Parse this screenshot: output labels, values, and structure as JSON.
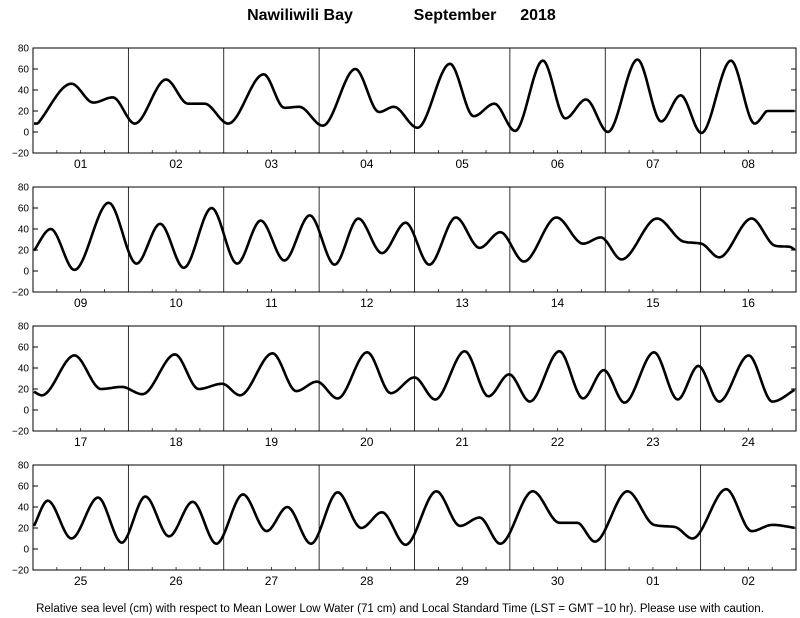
{
  "chart_data": {
    "type": "line",
    "title_location": "Nawiliwili Bay",
    "title_month": "September",
    "title_year": "2018",
    "footnote": "Relative sea level (cm) with respect to Mean Lower Low Water (71 cm) and Local Standard Time (LST = GMT −10 hr). Please use with caution.",
    "ylim": [
      -20,
      80
    ],
    "yticks": [
      -20,
      0,
      20,
      40,
      60,
      80
    ],
    "grid": false,
    "panels": [
      {
        "days": [
          "01",
          "02",
          "03",
          "04",
          "05",
          "06",
          "07",
          "08"
        ],
        "extrema": [
          [
            0.08,
            8
          ],
          [
            0.65,
            46
          ],
          [
            1.02,
            28
          ],
          [
            1.35,
            33
          ],
          [
            1.72,
            8
          ],
          [
            2.25,
            50
          ],
          [
            2.62,
            27
          ],
          [
            2.9,
            27
          ],
          [
            3.3,
            8
          ],
          [
            3.9,
            55
          ],
          [
            4.25,
            23
          ],
          [
            4.5,
            24
          ],
          [
            4.9,
            6
          ],
          [
            5.45,
            60
          ],
          [
            5.85,
            19
          ],
          [
            6.1,
            24
          ],
          [
            6.5,
            4
          ],
          [
            7.05,
            65
          ],
          [
            7.45,
            15
          ],
          [
            7.8,
            27
          ],
          [
            8.15,
            1
          ],
          [
            8.62,
            68
          ],
          [
            9.0,
            13
          ],
          [
            9.35,
            31
          ],
          [
            9.72,
            0
          ],
          [
            10.22,
            69
          ],
          [
            10.62,
            10
          ],
          [
            10.95,
            35
          ],
          [
            11.3,
            -1
          ],
          [
            11.8,
            68
          ],
          [
            12.2,
            8
          ],
          [
            12.4,
            20
          ]
        ]
      },
      {
        "days": [
          "09",
          "10",
          "11",
          "12",
          "13",
          "14",
          "15",
          "16"
        ],
        "extrema": [
          [
            0.0,
            18
          ],
          [
            0.3,
            40
          ],
          [
            0.7,
            1
          ],
          [
            1.28,
            65
          ],
          [
            1.75,
            7
          ],
          [
            2.15,
            45
          ],
          [
            2.55,
            3
          ],
          [
            3.02,
            60
          ],
          [
            3.45,
            7
          ],
          [
            3.85,
            48
          ],
          [
            4.25,
            10
          ],
          [
            4.68,
            53
          ],
          [
            5.1,
            6
          ],
          [
            5.5,
            50
          ],
          [
            5.9,
            17
          ],
          [
            6.3,
            46
          ],
          [
            6.7,
            6
          ],
          [
            7.15,
            51
          ],
          [
            7.55,
            22
          ],
          [
            7.9,
            37
          ],
          [
            8.3,
            9
          ],
          [
            8.85,
            51
          ],
          [
            9.3,
            26
          ],
          [
            9.6,
            32
          ],
          [
            9.95,
            11
          ],
          [
            10.55,
            50
          ],
          [
            11.0,
            28
          ],
          [
            11.3,
            26
          ],
          [
            11.6,
            13
          ],
          [
            12.15,
            50
          ],
          [
            12.55,
            24
          ],
          [
            12.8,
            23
          ],
          [
            12.9,
            19
          ]
        ]
      },
      {
        "days": [
          "17",
          "18",
          "19",
          "20",
          "21",
          "22",
          "23",
          "24"
        ],
        "extrema": [
          [
            0.0,
            18
          ],
          [
            0.15,
            14
          ],
          [
            0.7,
            52
          ],
          [
            1.15,
            20
          ],
          [
            1.5,
            22
          ],
          [
            1.85,
            15
          ],
          [
            2.4,
            53
          ],
          [
            2.8,
            20
          ],
          [
            3.2,
            25
          ],
          [
            3.5,
            14
          ],
          [
            4.05,
            54
          ],
          [
            4.45,
            18
          ],
          [
            4.8,
            27
          ],
          [
            5.15,
            11
          ],
          [
            5.65,
            55
          ],
          [
            6.05,
            16
          ],
          [
            6.45,
            31
          ],
          [
            6.8,
            10
          ],
          [
            7.3,
            56
          ],
          [
            7.7,
            13
          ],
          [
            8.05,
            34
          ],
          [
            8.4,
            8
          ],
          [
            8.9,
            56
          ],
          [
            9.3,
            11
          ],
          [
            9.65,
            38
          ],
          [
            10.0,
            7
          ],
          [
            10.5,
            55
          ],
          [
            10.9,
            10
          ],
          [
            11.25,
            42
          ],
          [
            11.6,
            8
          ],
          [
            12.1,
            52
          ],
          [
            12.5,
            8
          ],
          [
            12.9,
            20
          ]
        ]
      },
      {
        "days": [
          "25",
          "26",
          "27",
          "28",
          "29",
          "30",
          "01",
          "02"
        ],
        "extrema": [
          [
            0.0,
            20
          ],
          [
            0.25,
            46
          ],
          [
            0.65,
            10
          ],
          [
            1.1,
            49
          ],
          [
            1.5,
            6
          ],
          [
            1.9,
            50
          ],
          [
            2.3,
            12
          ],
          [
            2.7,
            45
          ],
          [
            3.1,
            5
          ],
          [
            3.55,
            52
          ],
          [
            3.95,
            17
          ],
          [
            4.3,
            40
          ],
          [
            4.7,
            5
          ],
          [
            5.15,
            54
          ],
          [
            5.55,
            20
          ],
          [
            5.9,
            35
          ],
          [
            6.3,
            4
          ],
          [
            6.82,
            55
          ],
          [
            7.22,
            22
          ],
          [
            7.55,
            30
          ],
          [
            7.9,
            5
          ],
          [
            8.45,
            55
          ],
          [
            8.9,
            25
          ],
          [
            9.2,
            25
          ],
          [
            9.5,
            7
          ],
          [
            10.05,
            55
          ],
          [
            10.5,
            23
          ],
          [
            10.85,
            21
          ],
          [
            11.15,
            10
          ],
          [
            11.72,
            57
          ],
          [
            12.15,
            17
          ],
          [
            12.5,
            23
          ],
          [
            12.9,
            20
          ]
        ]
      }
    ]
  }
}
